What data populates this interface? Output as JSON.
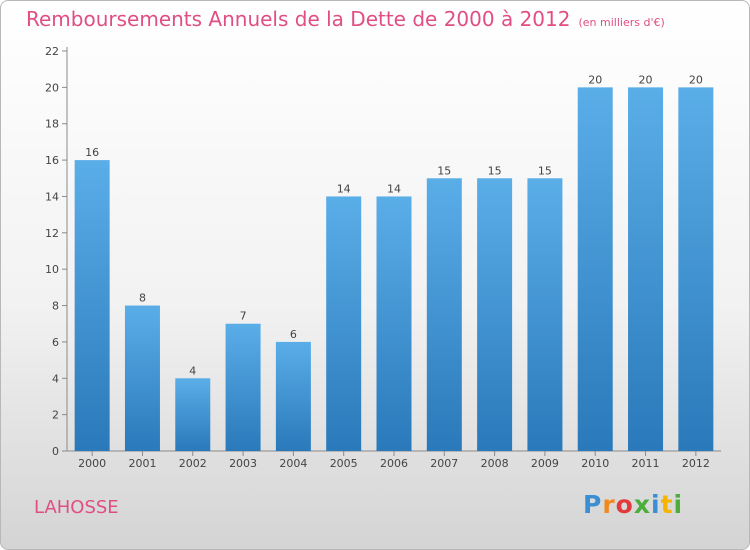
{
  "title": "Remboursements Annuels de la Dette de 2000 à 2012",
  "unit": "(en milliers d'€)",
  "town": "LAHOSSE",
  "brand": {
    "letters": [
      "P",
      "r",
      "o",
      "x",
      "i",
      "t",
      "i"
    ],
    "colors": [
      "#3a8fd4",
      "#f08a20",
      "#e23a3a",
      "#4cae3a",
      "#3a8fd4",
      "#f5b400",
      "#4cae3a"
    ]
  },
  "colors": {
    "accent": "#e04e84",
    "bar_top": "#5aaee8",
    "bar_bottom": "#2a79ba"
  },
  "chart_data": {
    "type": "bar",
    "categories": [
      "2000",
      "2001",
      "2002",
      "2003",
      "2004",
      "2005",
      "2006",
      "2007",
      "2008",
      "2009",
      "2010",
      "2011",
      "2012"
    ],
    "values": [
      16,
      8,
      4,
      7,
      6,
      14,
      14,
      15,
      15,
      15,
      20,
      20,
      20
    ],
    "data_labels": [
      "16",
      "8",
      "4",
      "7",
      "6",
      "14",
      "14",
      "15",
      "15",
      "15",
      "20",
      "20",
      "20"
    ],
    "y_ticks": [
      "0",
      "2",
      "4",
      "6",
      "8",
      "10",
      "12",
      "14",
      "16",
      "18",
      "20",
      "22"
    ],
    "ylim": [
      0,
      22
    ],
    "grid": false,
    "xlabel": "",
    "ylabel": ""
  }
}
